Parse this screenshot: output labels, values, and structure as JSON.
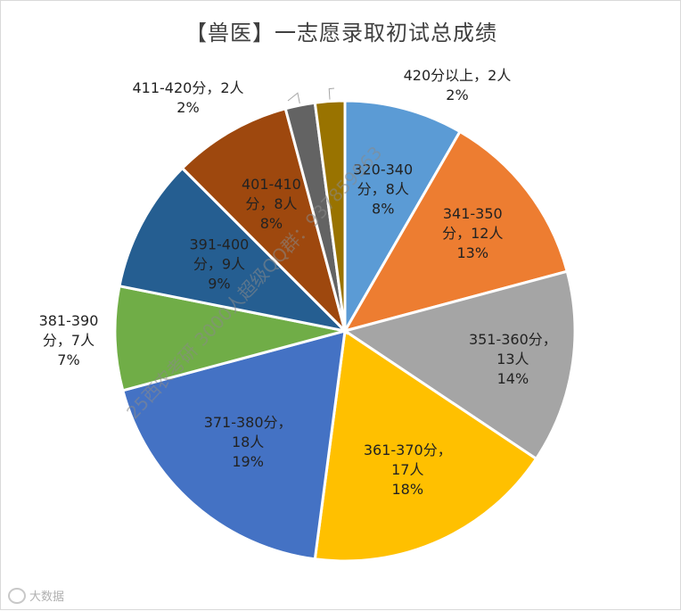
{
  "chart_data": {
    "type": "pie",
    "title": "【兽医】一志愿录取初试总成绩",
    "slices": [
      {
        "lines": [
          "320-340",
          "分，8人",
          "8%"
        ],
        "count": 8,
        "percent": 8,
        "color": "#5b9bd5"
      },
      {
        "lines": [
          "341-350",
          "分，12人",
          "13%"
        ],
        "count": 12,
        "percent": 13,
        "color": "#ed7d31"
      },
      {
        "lines": [
          "351-360分，",
          "13人",
          "14%"
        ],
        "count": 13,
        "percent": 14,
        "color": "#a5a5a5"
      },
      {
        "lines": [
          "361-370分，",
          "17人",
          "18%"
        ],
        "count": 17,
        "percent": 18,
        "color": "#ffc000"
      },
      {
        "lines": [
          "371-380分，",
          "18人",
          "19%"
        ],
        "count": 18,
        "percent": 19,
        "color": "#4472c4"
      },
      {
        "lines": [
          "381-390",
          "分，7人",
          "7%"
        ],
        "count": 7,
        "percent": 7,
        "color": "#70ad47"
      },
      {
        "lines": [
          "391-400",
          "分，9人",
          "9%"
        ],
        "count": 9,
        "percent": 9,
        "color": "#255e91"
      },
      {
        "lines": [
          "401-410",
          "分，8人",
          "8%"
        ],
        "count": 8,
        "percent": 8,
        "color": "#9e480e"
      },
      {
        "lines": [
          "411-420分，2人",
          "2%"
        ],
        "count": 2,
        "percent": 2,
        "color": "#636363"
      },
      {
        "lines": [
          "420分以上，2人",
          "2%"
        ],
        "count": 2,
        "percent": 2,
        "color": "#997300"
      }
    ]
  },
  "watermark": "25西农考研 3000人超级QQ群：937859963",
  "footer": {
    "logo_text": "大数据"
  }
}
